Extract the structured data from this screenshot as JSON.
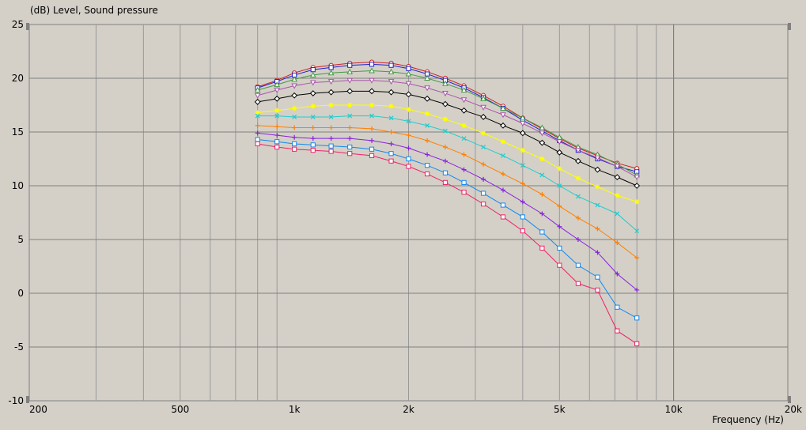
{
  "chart_data": {
    "type": "line",
    "ylabel": "(dB)  Level, Sound pressure",
    "xlabel": "Frequency  (Hz)",
    "xscale": "log",
    "xlim": [
      200,
      20000
    ],
    "ylim": [
      -10,
      25
    ],
    "grid": true,
    "x_ticks": [
      {
        "value": 200,
        "label": "200"
      },
      {
        "value": 500,
        "label": "500"
      },
      {
        "value": 1000,
        "label": "1k"
      },
      {
        "value": 2000,
        "label": "2k"
      },
      {
        "value": 5000,
        "label": "5k"
      },
      {
        "value": 10000,
        "label": "10k"
      },
      {
        "value": 20000,
        "label": "20k"
      }
    ],
    "y_ticks": [
      {
        "value": 25,
        "label": "25"
      },
      {
        "value": 20,
        "label": "20"
      },
      {
        "value": 15,
        "label": "15"
      },
      {
        "value": 10,
        "label": "10"
      },
      {
        "value": 5,
        "label": "5"
      },
      {
        "value": 0,
        "label": "0"
      },
      {
        "value": -5,
        "label": "-5"
      },
      {
        "value": -10,
        "label": "-10"
      }
    ],
    "x": [
      800,
      900,
      1000,
      1120,
      1250,
      1400,
      1600,
      1800,
      2000,
      2240,
      2500,
      2800,
      3150,
      3550,
      4000,
      4500,
      5000,
      5600,
      6300,
      7100,
      8000
    ],
    "series": [
      {
        "color": "#cc2222",
        "marker": "circle",
        "values": [
          19.2,
          19.8,
          20.5,
          21.0,
          21.2,
          21.4,
          21.5,
          21.4,
          21.1,
          20.6,
          20.0,
          19.3,
          18.4,
          17.4,
          16.3,
          15.3,
          14.4,
          13.5,
          12.8,
          12.1,
          11.6
        ]
      },
      {
        "color": "#2222cc",
        "marker": "square",
        "values": [
          19.1,
          19.7,
          20.3,
          20.8,
          21.0,
          21.2,
          21.3,
          21.2,
          20.9,
          20.4,
          19.8,
          19.1,
          18.2,
          17.2,
          16.1,
          15.1,
          14.2,
          13.3,
          12.5,
          11.8,
          11.3
        ]
      },
      {
        "color": "#449944",
        "marker": "triangle-up",
        "values": [
          18.9,
          19.4,
          19.9,
          20.3,
          20.5,
          20.6,
          20.7,
          20.6,
          20.4,
          20.0,
          19.5,
          18.9,
          18.1,
          17.2,
          16.3,
          15.4,
          14.5,
          13.6,
          12.9,
          12.0,
          11.0
        ]
      },
      {
        "color": "#aa55aa",
        "marker": "triangle-down",
        "values": [
          18.4,
          18.9,
          19.3,
          19.6,
          19.7,
          19.8,
          19.8,
          19.7,
          19.5,
          19.1,
          18.6,
          18.0,
          17.3,
          16.6,
          15.8,
          14.9,
          14.1,
          13.3,
          12.6,
          11.8,
          10.8
        ]
      },
      {
        "color": "#000000",
        "marker": "diamond",
        "values": [
          17.8,
          18.1,
          18.4,
          18.6,
          18.7,
          18.8,
          18.8,
          18.7,
          18.5,
          18.1,
          17.6,
          17.0,
          16.4,
          15.6,
          14.9,
          14.0,
          13.1,
          12.3,
          11.5,
          10.8,
          10.0
        ]
      },
      {
        "color": "#ffff00",
        "marker": "star",
        "values": [
          16.8,
          17.0,
          17.2,
          17.4,
          17.5,
          17.5,
          17.5,
          17.4,
          17.1,
          16.7,
          16.2,
          15.6,
          14.9,
          14.1,
          13.3,
          12.5,
          11.6,
          10.7,
          9.9,
          9.1,
          8.5
        ]
      },
      {
        "color": "#22cccc",
        "marker": "cross",
        "values": [
          16.5,
          16.5,
          16.4,
          16.4,
          16.4,
          16.5,
          16.5,
          16.3,
          16.0,
          15.6,
          15.1,
          14.4,
          13.6,
          12.8,
          11.9,
          11.0,
          10.0,
          9.0,
          8.2,
          7.4,
          5.8
        ]
      },
      {
        "color": "#ff7f00",
        "marker": "plus",
        "values": [
          15.6,
          15.5,
          15.4,
          15.4,
          15.4,
          15.4,
          15.3,
          15.0,
          14.7,
          14.2,
          13.6,
          12.9,
          12.0,
          11.1,
          10.2,
          9.2,
          8.1,
          7.0,
          6.0,
          4.7,
          3.3
        ]
      },
      {
        "color": "#8822dd",
        "marker": "plus",
        "values": [
          14.9,
          14.7,
          14.5,
          14.4,
          14.4,
          14.4,
          14.2,
          13.9,
          13.5,
          12.9,
          12.3,
          11.5,
          10.6,
          9.6,
          8.5,
          7.4,
          6.2,
          5.0,
          3.8,
          1.8,
          0.3
        ]
      },
      {
        "color": "#1188ee",
        "marker": "square",
        "values": [
          14.3,
          14.1,
          13.9,
          13.8,
          13.7,
          13.6,
          13.4,
          13.0,
          12.5,
          11.9,
          11.2,
          10.3,
          9.3,
          8.2,
          7.1,
          5.7,
          4.2,
          2.6,
          1.5,
          -1.3,
          -2.3
        ]
      },
      {
        "color": "#ee2266",
        "marker": "square",
        "values": [
          13.9,
          13.6,
          13.4,
          13.3,
          13.2,
          13.0,
          12.8,
          12.3,
          11.8,
          11.1,
          10.3,
          9.4,
          8.3,
          7.1,
          5.8,
          4.2,
          2.6,
          0.9,
          0.3,
          -3.5,
          -4.7
        ]
      }
    ]
  }
}
